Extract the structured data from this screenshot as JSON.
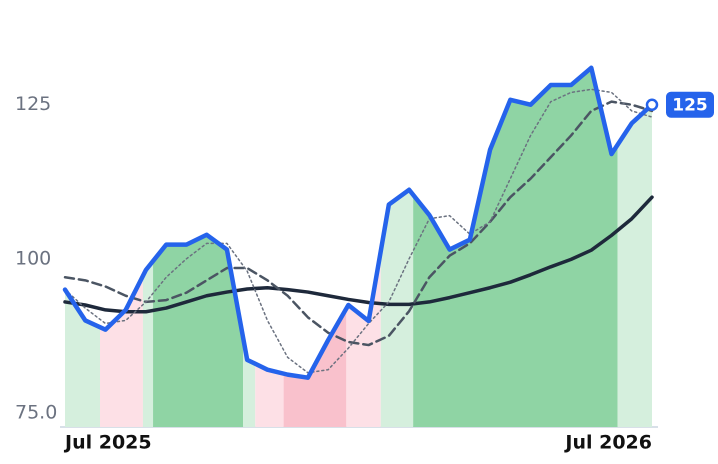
{
  "chart_data": {
    "type": "line",
    "categories": [
      "Jul 2025",
      null,
      null,
      null,
      null,
      null,
      null,
      null,
      null,
      null,
      null,
      null,
      null,
      null,
      null,
      null,
      null,
      null,
      null,
      null,
      null,
      null,
      null,
      null,
      null,
      null,
      null,
      null,
      null,
      "Jul 2026"
    ],
    "series": [
      {
        "color": "#1e293b",
        "style": "solid",
        "values": [
          93,
          92.5,
          91.7,
          91.4,
          91.4,
          92,
          93,
          94,
          94.6,
          95.1,
          95.3,
          95,
          94.6,
          94,
          93.4,
          92.9,
          92.6,
          92.6,
          93,
          93.7,
          94.5,
          95.3,
          96.2,
          97.4,
          98.7,
          99.9,
          101.4,
          103.8,
          106.5,
          110
        ]
      },
      {
        "color": "#4b5563",
        "style": "dashed",
        "values": [
          97,
          96.5,
          95.5,
          94,
          93,
          93.3,
          94.5,
          96.5,
          98.5,
          98.5,
          96.5,
          94,
          90.5,
          88,
          86.5,
          86,
          87.5,
          91.5,
          97,
          100.5,
          102.5,
          106,
          110,
          113,
          116.5,
          120,
          124,
          125.5,
          125,
          124
        ]
      },
      {
        "color": "#6b7280",
        "style": "dotted",
        "values": [
          95,
          92,
          89.5,
          90,
          93,
          97,
          100,
          102.5,
          102.5,
          98,
          90,
          84,
          81.5,
          82,
          85.5,
          89.5,
          93,
          100,
          106.5,
          107,
          104,
          106,
          113,
          120,
          125.5,
          127,
          127.5,
          127,
          124,
          123
        ]
      },
      {
        "color": "#2563eb",
        "style": "price",
        "values": [
          95,
          90,
          88.5,
          91.7,
          98.2,
          102.3,
          102.3,
          103.9,
          101.5,
          83.6,
          82,
          81.2,
          80.7,
          86.8,
          92.5,
          89.9,
          108.8,
          111.2,
          107.1,
          101.5,
          103.1,
          117.7,
          125.8,
          125,
          128.2,
          128.2,
          131,
          117,
          122,
          125
        ]
      }
    ],
    "regions": [
      {
        "from": 0,
        "to": 1.73,
        "color": "#d5efdd"
      },
      {
        "from": 1.73,
        "to": 3.85,
        "color": "#fde0e6"
      },
      {
        "from": 3.85,
        "to": 4.35,
        "color": "#d5efdd"
      },
      {
        "from": 4.35,
        "to": 8.8,
        "color": "#8fd4a4"
      },
      {
        "from": 8.8,
        "to": 9.4,
        "color": "#d5efdd"
      },
      {
        "from": 9.4,
        "to": 10.8,
        "color": "#fde0e6"
      },
      {
        "from": 10.8,
        "to": 13.9,
        "color": "#f9c1cc"
      },
      {
        "from": 13.9,
        "to": 15.6,
        "color": "#fde0e6"
      },
      {
        "from": 15.6,
        "to": 17.2,
        "color": "#d5efdd"
      },
      {
        "from": 17.2,
        "to": 27.3,
        "color": "#8fd4a4"
      },
      {
        "from": 27.3,
        "to": 29,
        "color": "#d5efdd"
      }
    ],
    "ylim": [
      72.7,
      142
    ],
    "yticks": [
      {
        "value": 75,
        "label": "75.0"
      },
      100,
      125
    ]
  }
}
